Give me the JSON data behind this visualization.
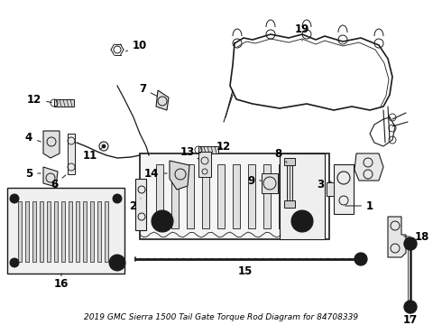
{
  "title": "2019 GMC Sierra 1500 Tail Gate Torque Rod Diagram for 84708339",
  "bg_color": "#ffffff",
  "line_color": "#1a1a1a",
  "label_color": "#000000",
  "font_size": 8.5,
  "title_font_size": 6.5,
  "figsize": [
    4.9,
    3.6
  ],
  "dpi": 100,
  "xlim": [
    0,
    490
  ],
  "ylim": [
    0,
    360
  ]
}
